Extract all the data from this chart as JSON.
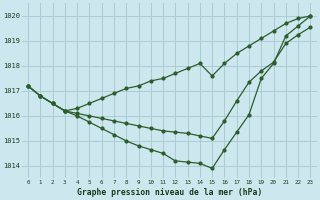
{
  "title": "Graphe pression niveau de la mer (hPa)",
  "bg_color": "#cce8ee",
  "grid_color": "#aaccd4",
  "line_color": "#2d5c2d",
  "xlim": [
    -0.5,
    23.5
  ],
  "ylim": [
    1013.5,
    1020.5
  ],
  "yticks": [
    1014,
    1015,
    1016,
    1017,
    1018,
    1019,
    1020
  ],
  "xticks": [
    0,
    1,
    2,
    3,
    4,
    5,
    6,
    7,
    8,
    9,
    10,
    11,
    12,
    13,
    14,
    15,
    16,
    17,
    18,
    19,
    20,
    21,
    22,
    23
  ],
  "line1": [
    1017.2,
    1016.8,
    1016.5,
    1016.2,
    1016.3,
    1016.5,
    1016.7,
    1016.9,
    1017.1,
    1017.2,
    1017.4,
    1017.5,
    1017.7,
    1017.9,
    1018.1,
    1017.6,
    1018.1,
    1018.5,
    1018.8,
    1019.1,
    1019.4,
    1019.7,
    1019.9,
    1020.0
  ],
  "line2": [
    1017.2,
    1016.8,
    1016.5,
    1016.2,
    1016.1,
    1016.0,
    1015.9,
    1015.8,
    1015.7,
    1015.6,
    1015.5,
    1015.4,
    1015.35,
    1015.3,
    1015.2,
    1015.1,
    1015.8,
    1016.6,
    1017.35,
    1017.8,
    1018.15,
    1018.9,
    1019.25,
    1019.55
  ],
  "line3": [
    1017.2,
    1016.8,
    1016.5,
    1016.2,
    1016.0,
    1015.75,
    1015.5,
    1015.25,
    1015.0,
    1014.8,
    1014.65,
    1014.5,
    1014.2,
    1014.15,
    1014.1,
    1013.9,
    1014.65,
    1015.35,
    1016.05,
    1017.5,
    1018.1,
    1019.2,
    1019.6,
    1020.0
  ]
}
